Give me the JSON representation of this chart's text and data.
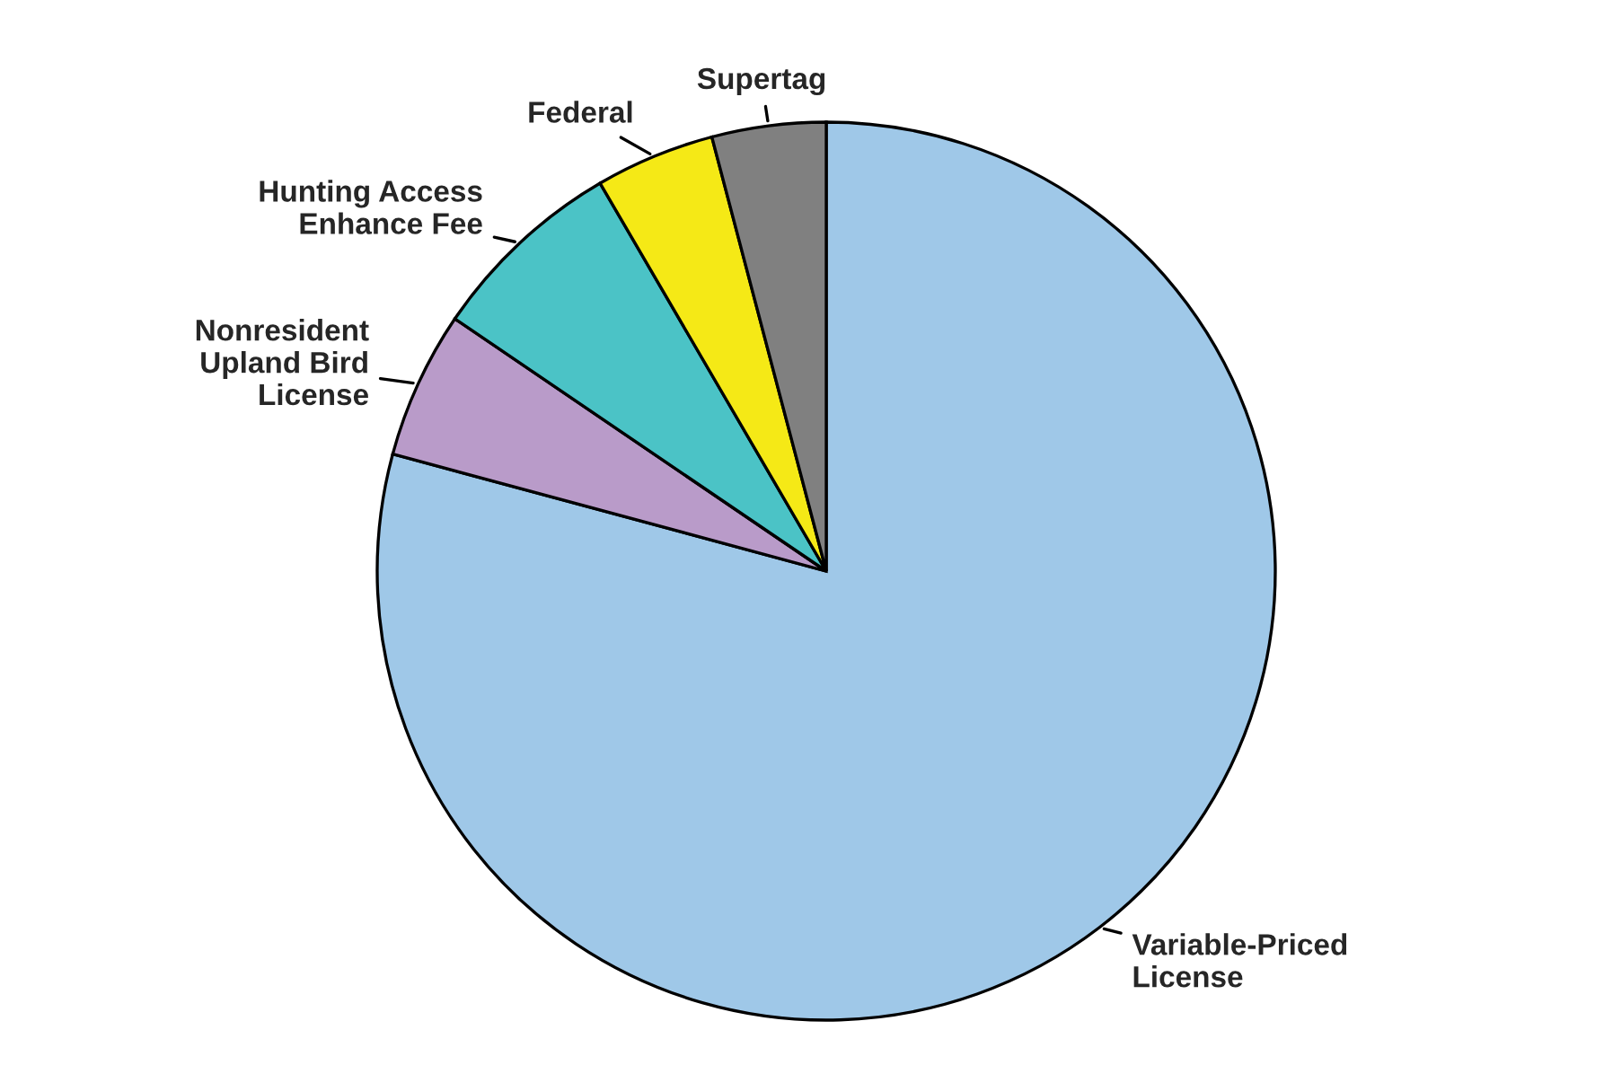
{
  "chart_data": {
    "type": "pie",
    "categories": [
      "Variable-Priced\nLicense",
      "Nonresident\nUpland Bird\nLicense",
      "Hunting Access\nEnhance Fee",
      "Federal",
      "Supertag"
    ],
    "values": [
      79.2,
      5.3,
      7.1,
      4.3,
      4.1
    ],
    "colors": [
      "#9fc8e8",
      "#b99bc9",
      "#4bc3c6",
      "#f5e916",
      "#808080"
    ]
  }
}
